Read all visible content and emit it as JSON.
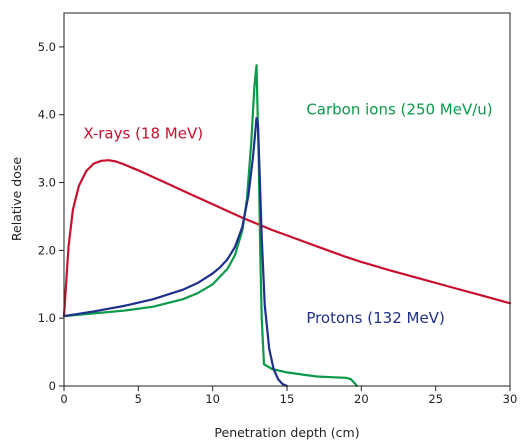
{
  "chart_data": {
    "type": "line",
    "xlabel": "Penetration depth (cm)",
    "ylabel": "Relative dose",
    "xlim": [
      0,
      30
    ],
    "ylim": [
      0,
      5.5
    ],
    "x_ticks": [
      0,
      5,
      10,
      15,
      20,
      25,
      30
    ],
    "y_ticks": [
      0,
      1.0,
      2.0,
      3.0,
      4.0,
      5.0
    ],
    "x_tick_labels": [
      "0",
      "5",
      "10",
      "15",
      "20",
      "25",
      "30"
    ],
    "y_tick_labels": [
      "0",
      "1.0",
      "2.0",
      "3.0",
      "4.0",
      "5.0"
    ],
    "grid": false,
    "legend": "inline labels",
    "series": [
      {
        "name": "X-rays (18 MeV)",
        "color": "#c8102e",
        "x": [
          0,
          0.3,
          0.6,
          1.0,
          1.5,
          2.0,
          2.5,
          3.0,
          3.5,
          4.0,
          5.0,
          6.0,
          7.0,
          8.0,
          9.0,
          10.0,
          11.0,
          12.0,
          13.0,
          14.0,
          15.0,
          16.0,
          17.0,
          18.0,
          19.0,
          20.0,
          22.0,
          24.0,
          26.0,
          28.0,
          30.0
        ],
        "y": [
          1.03,
          2.05,
          2.6,
          2.95,
          3.17,
          3.28,
          3.32,
          3.33,
          3.31,
          3.27,
          3.18,
          3.08,
          2.98,
          2.88,
          2.78,
          2.68,
          2.58,
          2.48,
          2.39,
          2.3,
          2.22,
          2.14,
          2.06,
          1.98,
          1.9,
          1.83,
          1.7,
          1.58,
          1.46,
          1.34,
          1.22
        ]
      },
      {
        "name": "Carbon ions (250 MeV/u)",
        "color": "#0a9a48",
        "x": [
          0,
          2,
          4,
          6,
          8,
          9,
          10,
          11,
          11.5,
          12.0,
          12.3,
          12.6,
          12.8,
          12.95,
          13.1,
          13.2,
          13.3,
          13.45,
          14.0,
          15.0,
          16.0,
          17.0,
          18.0,
          19.0,
          19.3,
          19.6,
          19.7
        ],
        "y": [
          1.03,
          1.07,
          1.11,
          1.17,
          1.28,
          1.37,
          1.5,
          1.73,
          1.93,
          2.3,
          2.75,
          3.6,
          4.4,
          4.73,
          3.3,
          2.0,
          1.0,
          0.32,
          0.25,
          0.2,
          0.17,
          0.14,
          0.13,
          0.12,
          0.1,
          0.03,
          0
        ]
      },
      {
        "name": "Protons (132 MeV)",
        "color": "#1f2f8e",
        "x": [
          0,
          2,
          4,
          6,
          8,
          9,
          10,
          10.5,
          11.0,
          11.5,
          12.0,
          12.4,
          12.7,
          12.85,
          12.95,
          13.05,
          13.15,
          13.3,
          13.5,
          13.8,
          14.1,
          14.4,
          14.7,
          15.0
        ],
        "y": [
          1.03,
          1.1,
          1.18,
          1.28,
          1.42,
          1.52,
          1.66,
          1.75,
          1.87,
          2.05,
          2.35,
          2.8,
          3.35,
          3.7,
          3.95,
          3.85,
          3.2,
          2.2,
          1.2,
          0.55,
          0.25,
          0.1,
          0.03,
          0
        ]
      }
    ],
    "annotations": [
      {
        "text": "X-rays (18 MeV)",
        "series": 0,
        "at": [
          1.3,
          3.65
        ]
      },
      {
        "text": "Carbon ions (250 MeV/u)",
        "series": 1,
        "at": [
          16.3,
          4.0
        ]
      },
      {
        "text": "Protons (132 MeV)",
        "series": 2,
        "at": [
          16.3,
          0.93
        ]
      }
    ]
  }
}
